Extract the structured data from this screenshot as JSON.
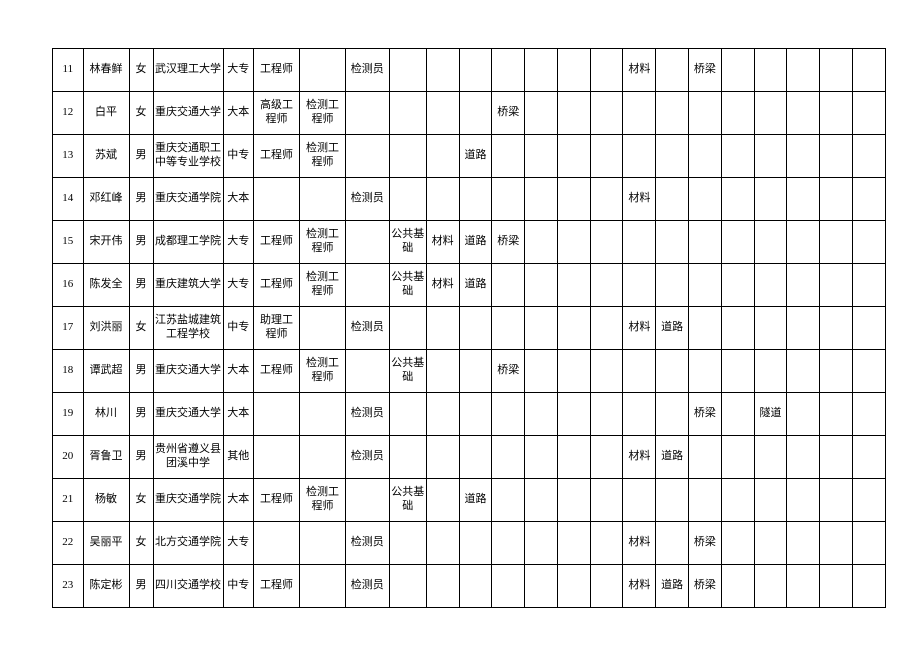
{
  "table": {
    "border_color": "#000000",
    "background_color": "#ffffff",
    "font_size": 11,
    "rows": [
      {
        "idx": "11",
        "name": "林春鲜",
        "sex": "女",
        "school": "武汉理工大学",
        "edu": "大专",
        "title": "工程师",
        "q1": "",
        "q2": "检测员",
        "q3": "",
        "a": "",
        "b": "",
        "c": "",
        "d": "",
        "e": "",
        "f": "",
        "g": "材料",
        "h": "",
        "i": "桥梁",
        "j": "",
        "k": "",
        "l": "",
        "m": ""
      },
      {
        "idx": "12",
        "name": "白平",
        "sex": "女",
        "school": "重庆交通大学",
        "edu": "大本",
        "title": "高级工程师",
        "q1": "检测工程师",
        "q2": "",
        "q3": "",
        "a": "",
        "b": "",
        "c": "桥梁",
        "d": "",
        "e": "",
        "f": "",
        "g": "",
        "h": "",
        "i": "",
        "j": "",
        "k": "",
        "l": "",
        "m": ""
      },
      {
        "idx": "13",
        "name": "苏斌",
        "sex": "男",
        "school": "重庆交通职工中等专业学校",
        "edu": "中专",
        "title": "工程师",
        "q1": "检测工程师",
        "q2": "",
        "q3": "",
        "a": "",
        "b": "道路",
        "c": "",
        "d": "",
        "e": "",
        "f": "",
        "g": "",
        "h": "",
        "i": "",
        "j": "",
        "k": "",
        "l": "",
        "m": ""
      },
      {
        "idx": "14",
        "name": "邓红峰",
        "sex": "男",
        "school": "重庆交通学院",
        "edu": "大本",
        "title": "",
        "q1": "",
        "q2": "检测员",
        "q3": "",
        "a": "",
        "b": "",
        "c": "",
        "d": "",
        "e": "",
        "f": "",
        "g": "材料",
        "h": "",
        "i": "",
        "j": "",
        "k": "",
        "l": "",
        "m": ""
      },
      {
        "idx": "15",
        "name": "宋开伟",
        "sex": "男",
        "school": "成都理工学院",
        "edu": "大专",
        "title": "工程师",
        "q1": "检测工程师",
        "q2": "",
        "q3": "公共基础",
        "a": "材料",
        "b": "道路",
        "c": "桥梁",
        "d": "",
        "e": "",
        "f": "",
        "g": "",
        "h": "",
        "i": "",
        "j": "",
        "k": "",
        "l": "",
        "m": ""
      },
      {
        "idx": "16",
        "name": "陈发全",
        "sex": "男",
        "school": "重庆建筑大学",
        "edu": "大专",
        "title": "工程师",
        "q1": "检测工程师",
        "q2": "",
        "q3": "公共基础",
        "a": "材料",
        "b": "道路",
        "c": "",
        "d": "",
        "e": "",
        "f": "",
        "g": "",
        "h": "",
        "i": "",
        "j": "",
        "k": "",
        "l": "",
        "m": ""
      },
      {
        "idx": "17",
        "name": "刘洪丽",
        "sex": "女",
        "school": "江苏盐城建筑工程学校",
        "edu": "中专",
        "title": "助理工程师",
        "q1": "",
        "q2": "检测员",
        "q3": "",
        "a": "",
        "b": "",
        "c": "",
        "d": "",
        "e": "",
        "f": "",
        "g": "材料",
        "h": "道路",
        "i": "",
        "j": "",
        "k": "",
        "l": "",
        "m": ""
      },
      {
        "idx": "18",
        "name": "谭武超",
        "sex": "男",
        "school": "重庆交通大学",
        "edu": "大本",
        "title": "工程师",
        "q1": "检测工程师",
        "q2": "",
        "q3": "公共基础",
        "a": "",
        "b": "",
        "c": "桥梁",
        "d": "",
        "e": "",
        "f": "",
        "g": "",
        "h": "",
        "i": "",
        "j": "",
        "k": "",
        "l": "",
        "m": ""
      },
      {
        "idx": "19",
        "name": "林川",
        "sex": "男",
        "school": "重庆交通大学",
        "edu": "大本",
        "title": "",
        "q1": "",
        "q2": "检测员",
        "q3": "",
        "a": "",
        "b": "",
        "c": "",
        "d": "",
        "e": "",
        "f": "",
        "g": "",
        "h": "",
        "i": "桥梁",
        "j": "",
        "k": "隧道",
        "l": "",
        "m": ""
      },
      {
        "idx": "20",
        "name": "胥鲁卫",
        "sex": "男",
        "school": "贵州省遵义县团溪中学",
        "edu": "其他",
        "title": "",
        "q1": "",
        "q2": "检测员",
        "q3": "",
        "a": "",
        "b": "",
        "c": "",
        "d": "",
        "e": "",
        "f": "",
        "g": "材料",
        "h": "道路",
        "i": "",
        "j": "",
        "k": "",
        "l": "",
        "m": ""
      },
      {
        "idx": "21",
        "name": "杨敏",
        "sex": "女",
        "school": "重庆交通学院",
        "edu": "大本",
        "title": "工程师",
        "q1": "检测工程师",
        "q2": "",
        "q3": "公共基础",
        "a": "",
        "b": "道路",
        "c": "",
        "d": "",
        "e": "",
        "f": "",
        "g": "",
        "h": "",
        "i": "",
        "j": "",
        "k": "",
        "l": "",
        "m": ""
      },
      {
        "idx": "22",
        "name": "吴丽平",
        "sex": "女",
        "school": "北方交通学院",
        "edu": "大专",
        "title": "",
        "q1": "",
        "q2": "检测员",
        "q3": "",
        "a": "",
        "b": "",
        "c": "",
        "d": "",
        "e": "",
        "f": "",
        "g": "材料",
        "h": "",
        "i": "桥梁",
        "j": "",
        "k": "",
        "l": "",
        "m": ""
      },
      {
        "idx": "23",
        "name": "陈定彬",
        "sex": "男",
        "school": "四川交通学校",
        "edu": "中专",
        "title": "工程师",
        "q1": "",
        "q2": "检测员",
        "q3": "",
        "a": "",
        "b": "",
        "c": "",
        "d": "",
        "e": "",
        "f": "",
        "g": "材料",
        "h": "道路",
        "i": "桥梁",
        "j": "",
        "k": "",
        "l": "",
        "m": ""
      }
    ]
  }
}
